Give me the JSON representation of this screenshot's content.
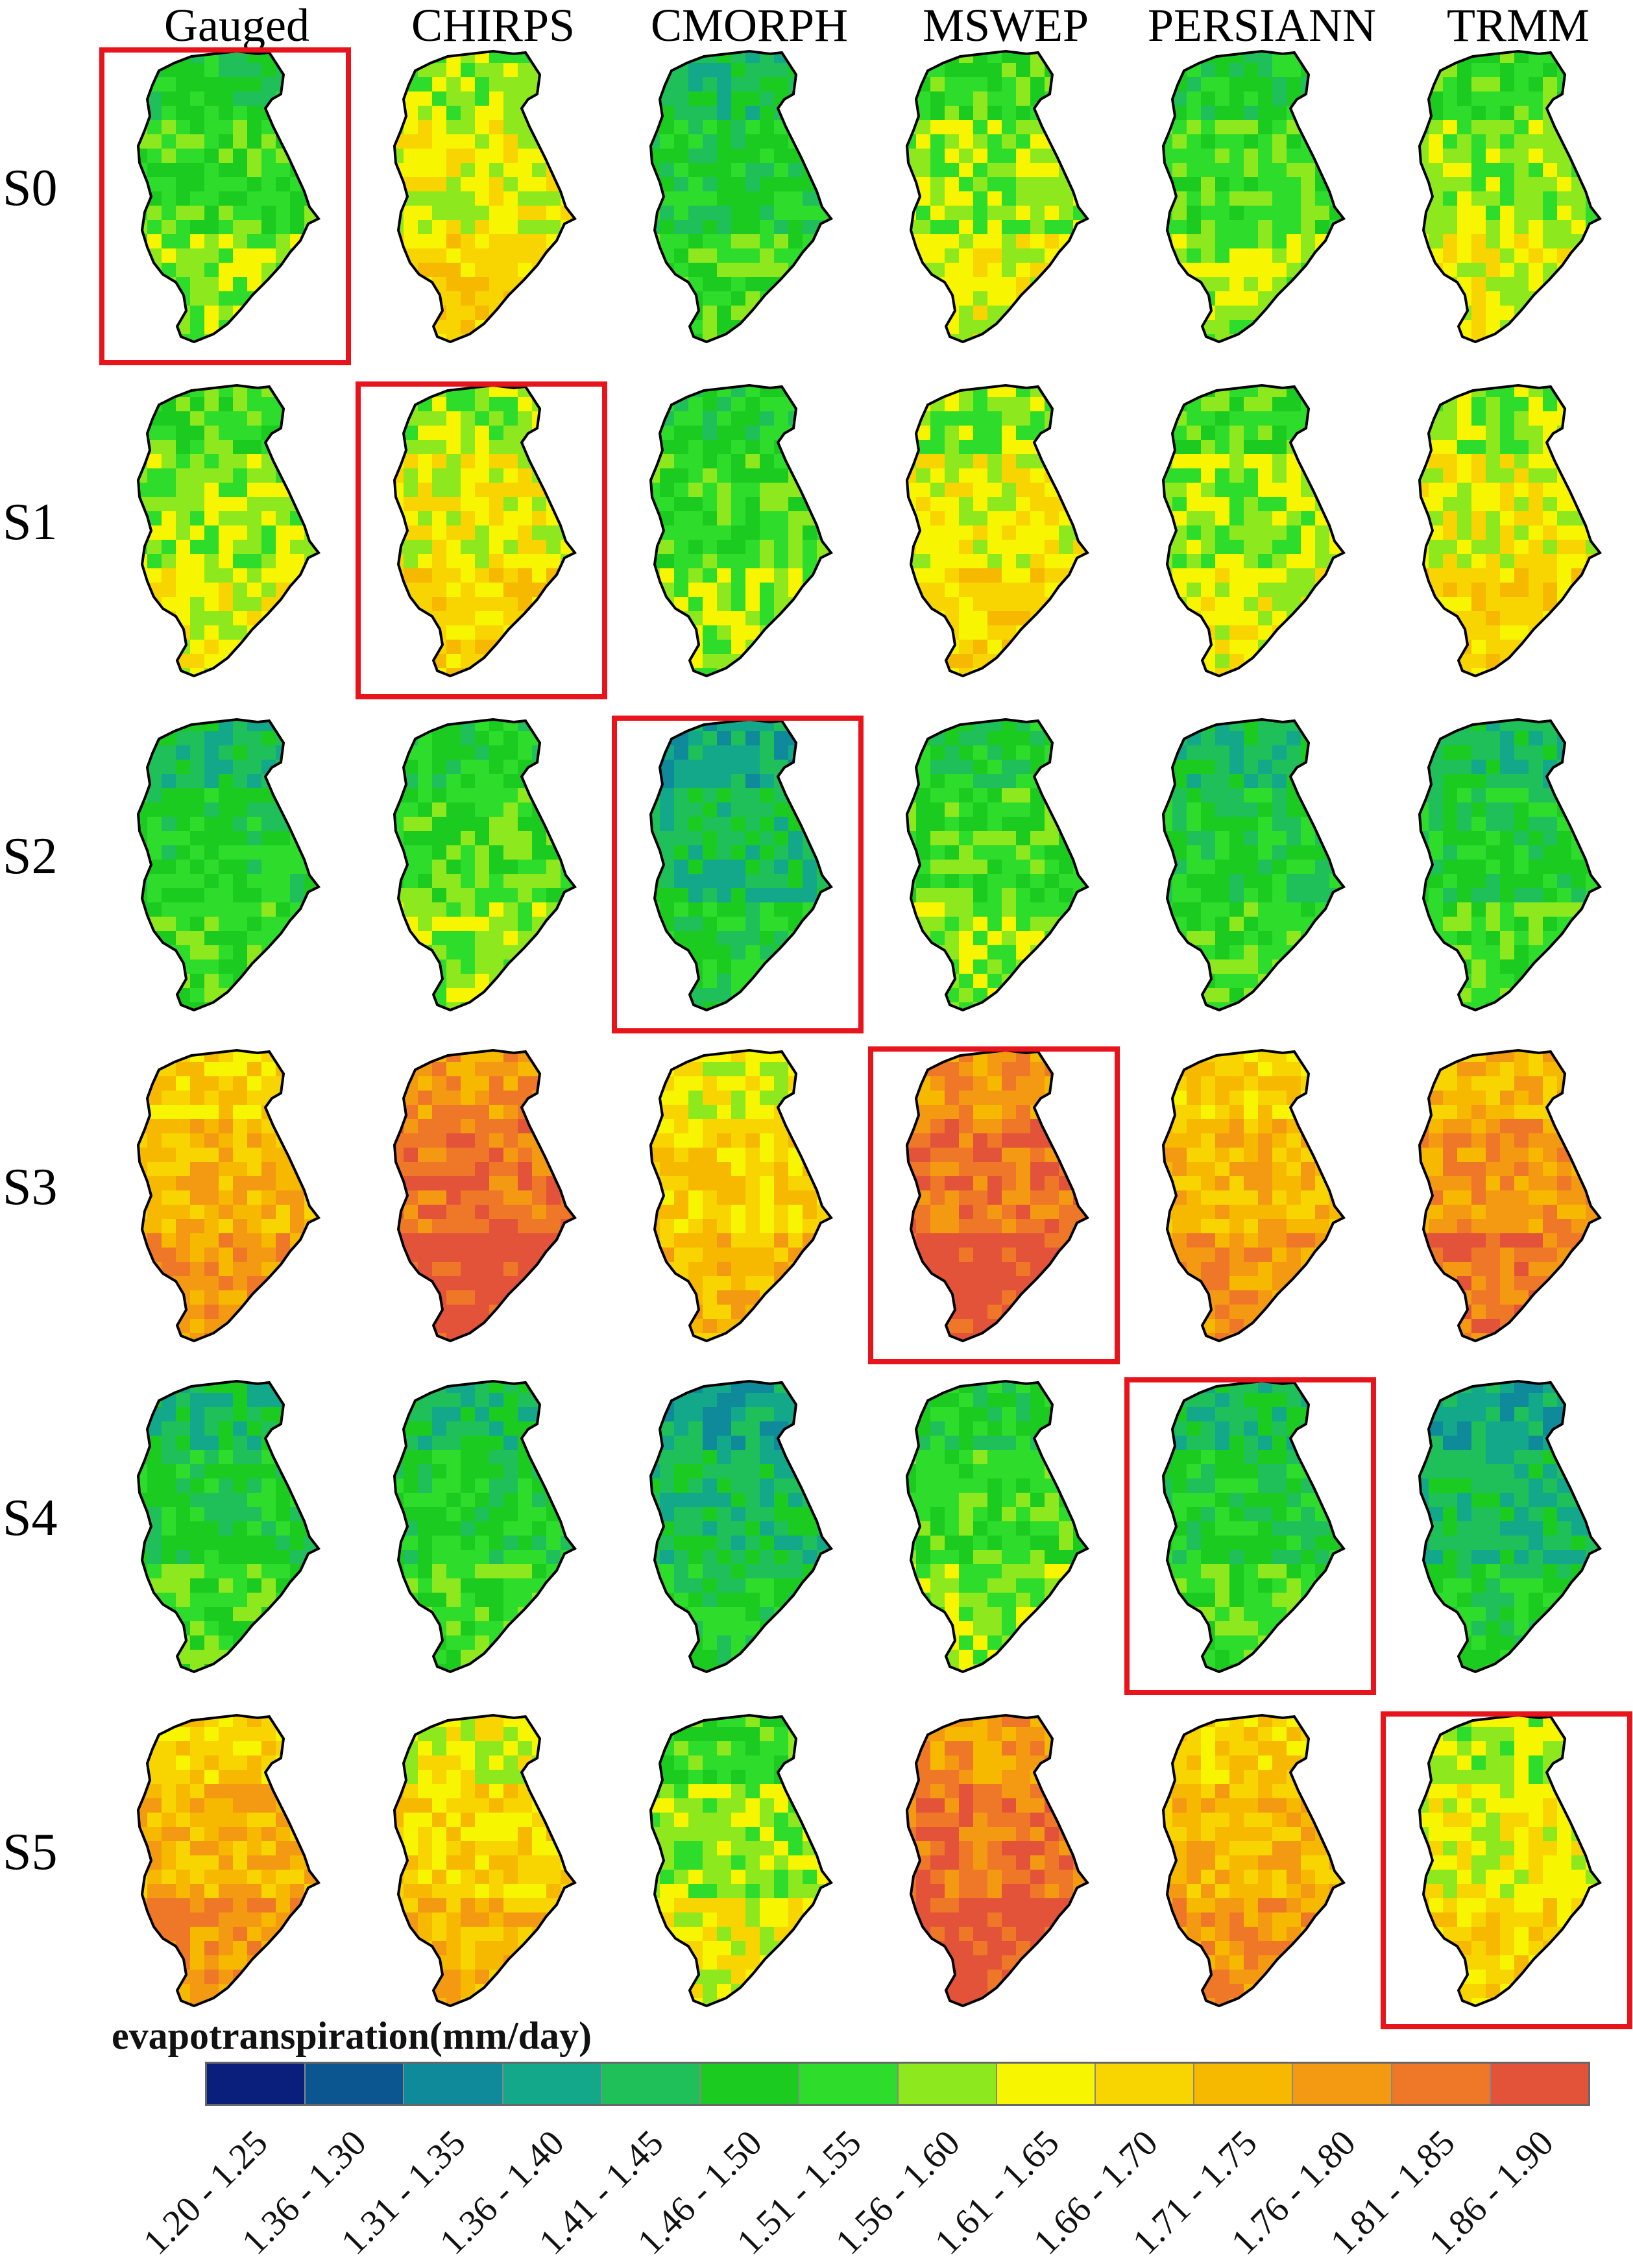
{
  "columns": [
    "Gauged",
    "CHIRPS",
    "CMORPH",
    "MSWEP",
    "PERSIANN",
    "TRMM"
  ],
  "rows": [
    "S0",
    "S1",
    "S2",
    "S3",
    "S4",
    "S5"
  ],
  "best_per_row": [
    0,
    1,
    2,
    3,
    4,
    5
  ],
  "legend": {
    "title": "evapotranspiration(mm/day)",
    "classes": [
      {
        "label": "1.20 - 1.25",
        "color": "#0a1f7c"
      },
      {
        "label": "1.36 - 1.30",
        "color": "#0b5590"
      },
      {
        "label": "1.31 - 1.35",
        "color": "#0e8a9b"
      },
      {
        "label": "1.36 - 1.40",
        "color": "#13a88a"
      },
      {
        "label": "1.41 - 1.45",
        "color": "#1fbf5a"
      },
      {
        "label": "1.46 - 1.50",
        "color": "#1ccb20"
      },
      {
        "label": "1.51 - 1.55",
        "color": "#2edc2c"
      },
      {
        "label": "1.56 - 1.60",
        "color": "#8ee81e"
      },
      {
        "label": "1.61 - 1.65",
        "color": "#f7f500"
      },
      {
        "label": "1.66 - 1.70",
        "color": "#f8d400"
      },
      {
        "label": "1.71 - 1.75",
        "color": "#f7b800"
      },
      {
        "label": "1.76 - 1.80",
        "color": "#f49a12"
      },
      {
        "label": "1.81 - 1.85",
        "color": "#ef7828"
      },
      {
        "label": "1.86 - 1.90",
        "color": "#e2533a"
      }
    ]
  },
  "map_base_class": [
    [
      6,
      8,
      5,
      7,
      6,
      7
    ],
    [
      7,
      8,
      6,
      8,
      7,
      8
    ],
    [
      5,
      6,
      4,
      6,
      5,
      5
    ],
    [
      10,
      12,
      9,
      12,
      10,
      11
    ],
    [
      5,
      5,
      4,
      6,
      5,
      4
    ],
    [
      10,
      9,
      7,
      12,
      10,
      8
    ]
  ],
  "highlight_color": "#e8141c",
  "outline_color": "#000000"
}
